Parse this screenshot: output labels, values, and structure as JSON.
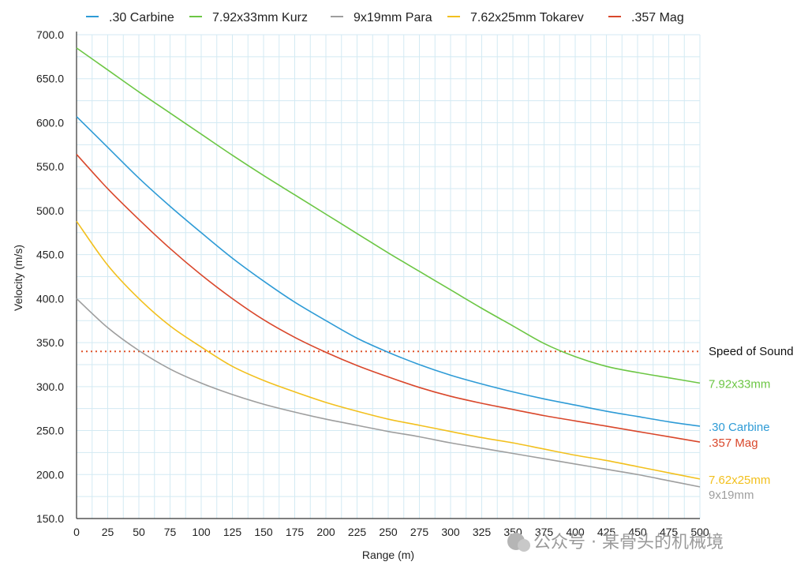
{
  "chart_data": {
    "type": "line",
    "xlabel": "Range (m)",
    "ylabel": "Velocity (m/s)",
    "xlim": [
      0,
      500
    ],
    "ylim": [
      150,
      700
    ],
    "grid": true,
    "legend_position": "top",
    "x_ticks": [
      "0",
      "25",
      "50",
      "75",
      "100",
      "125",
      "150",
      "175",
      "200",
      "225",
      "250",
      "275",
      "300",
      "325",
      "350",
      "375",
      "400",
      "425",
      "450",
      "475",
      "500"
    ],
    "y_ticks": [
      "150.0",
      "200.0",
      "250.0",
      "300.0",
      "350.0",
      "400.0",
      "450.0",
      "500.0",
      "550.0",
      "600.0",
      "650.0",
      "700.0"
    ],
    "x": [
      0,
      25,
      50,
      75,
      100,
      125,
      150,
      175,
      200,
      225,
      250,
      275,
      300,
      325,
      350,
      375,
      400,
      425,
      450,
      475,
      500
    ],
    "series": [
      {
        "name": ".30 Carbine",
        "end_label": ".30 Carbine",
        "color": "#2e9bd6",
        "values": [
          607,
          572,
          537,
          505,
          475,
          446,
          420,
          396,
          375,
          355,
          339,
          325,
          313,
          303,
          294,
          286,
          279,
          272,
          266,
          260,
          255
        ]
      },
      {
        "name": "7.92x33mm Kurz",
        "end_label": "7.92x33mm",
        "color": "#6cc644",
        "values": [
          685,
          660,
          635,
          611,
          587,
          563,
          540,
          518,
          496,
          474,
          452,
          431,
          410,
          389,
          369,
          349,
          334,
          323,
          316,
          310,
          304
        ]
      },
      {
        "name": "9x19mm Para",
        "end_label": "9x19mm",
        "color": "#9e9e9e",
        "values": [
          400,
          367,
          341,
          320,
          304,
          291,
          280,
          271,
          263,
          256,
          249,
          243,
          236,
          230,
          224,
          218,
          212,
          206,
          200,
          193,
          186
        ]
      },
      {
        "name": "7.62x25mm Tokarev",
        "end_label": "7.62x25mm",
        "color": "#f2c01e",
        "values": [
          488,
          438,
          400,
          369,
          345,
          323,
          307,
          294,
          282,
          272,
          263,
          256,
          249,
          242,
          236,
          229,
          222,
          216,
          209,
          202,
          195
        ]
      },
      {
        "name": ".357 Mag",
        "end_label": ".357 Mag",
        "color": "#d9472b",
        "values": [
          564,
          525,
          490,
          457,
          427,
          400,
          376,
          356,
          339,
          324,
          311,
          299,
          289,
          281,
          274,
          267,
          261,
          255,
          249,
          243,
          237
        ]
      }
    ],
    "reference_lines": [
      {
        "label": "Speed of Sound",
        "y": 340,
        "color": "#e0532a"
      }
    ]
  },
  "watermark": "公众号 · 某骨头的机械境"
}
